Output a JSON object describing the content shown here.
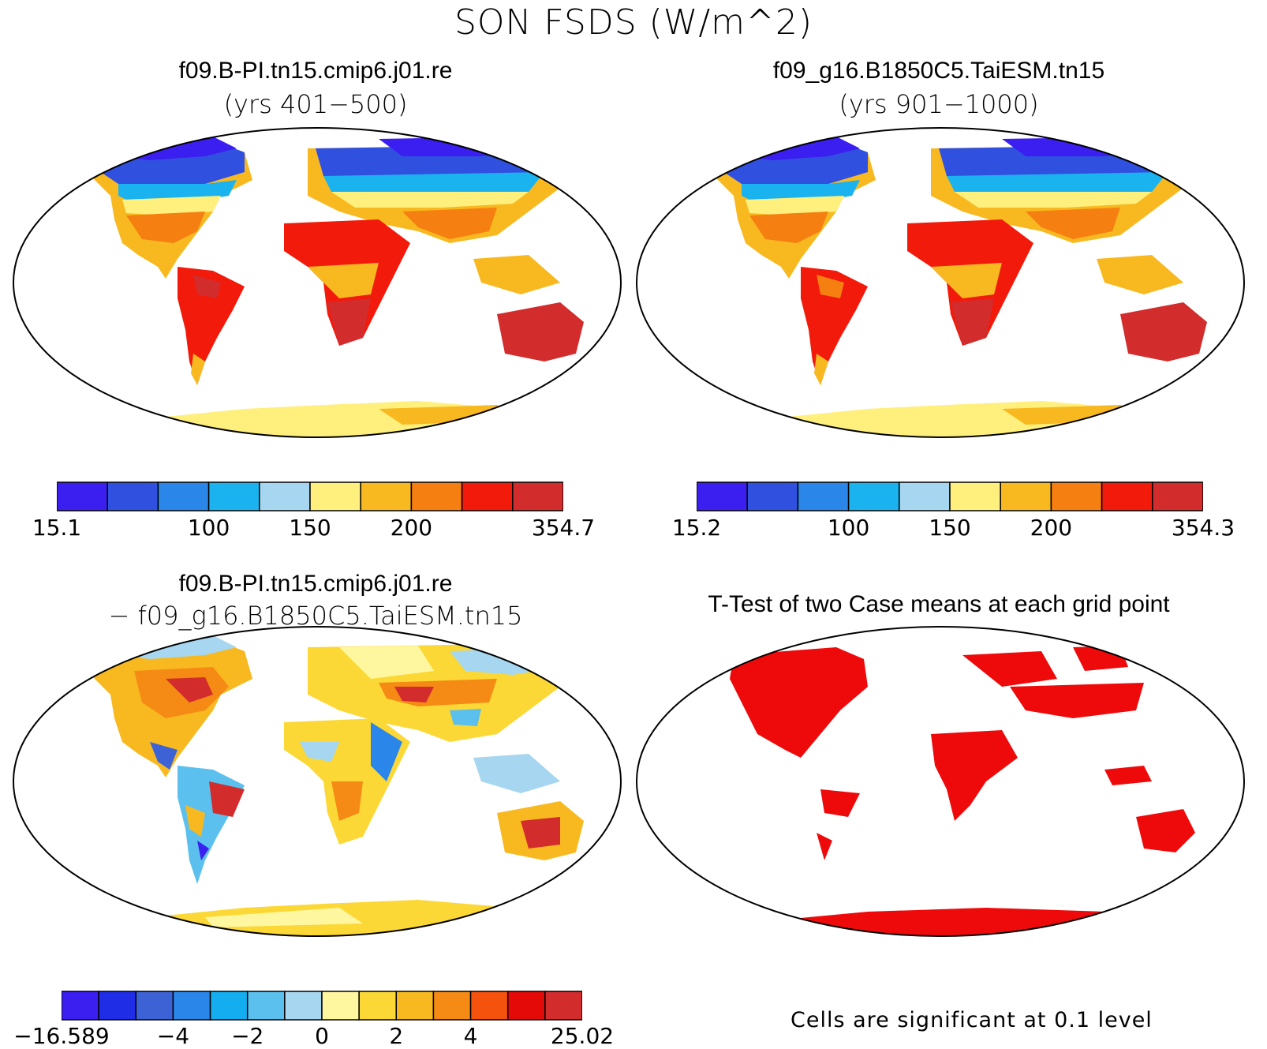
{
  "figure": {
    "title": "SON FSDS (W/m^2)"
  },
  "panels": [
    {
      "title": "f09.B-PI.tn15.cmip6.j01.re",
      "subtitle": "(yrs 401−500)",
      "colorbar": {
        "colors": [
          "#3b1ff0",
          "#3050e0",
          "#2b86ea",
          "#1bb3ef",
          "#a6d6f0",
          "#fff07e",
          "#f8b920",
          "#f57f10",
          "#f21a0a",
          "#d22c2c"
        ],
        "labels": [
          "15.1",
          "100",
          "150",
          "200",
          "354.7"
        ]
      }
    },
    {
      "title": "f09_g16.B1850C5.TaiESM.tn15",
      "subtitle": "(yrs 901−1000)",
      "colorbar": {
        "colors": [
          "#3b1ff0",
          "#3050e0",
          "#2b86ea",
          "#1bb3ef",
          "#a6d6f0",
          "#fff07e",
          "#f8b920",
          "#f57f10",
          "#f21a0a",
          "#d22c2c"
        ],
        "labels": [
          "15.2",
          "100",
          "150",
          "200",
          "354.3"
        ]
      }
    },
    {
      "title": "f09.B-PI.tn15.cmip6.j01.re",
      "subtitle": "− f09_g16.B1850C5.TaiESM.tn15",
      "colorbar": {
        "colors": [
          "#3b1ff0",
          "#1f2ee6",
          "#3d62d6",
          "#2b86ea",
          "#14aef0",
          "#5bc0ee",
          "#a6d6f0",
          "#fff7a0",
          "#fbd835",
          "#f8b920",
          "#f58a14",
          "#f5520e",
          "#e40a08",
          "#d22c2c"
        ],
        "labels": [
          "−16.589",
          "−4",
          "−2",
          "0",
          "2",
          "4",
          "25.02"
        ]
      }
    },
    {
      "title": "T-Test of two Case means at each grid point",
      "footnote": "Cells are significant at 0.1 level"
    }
  ]
}
